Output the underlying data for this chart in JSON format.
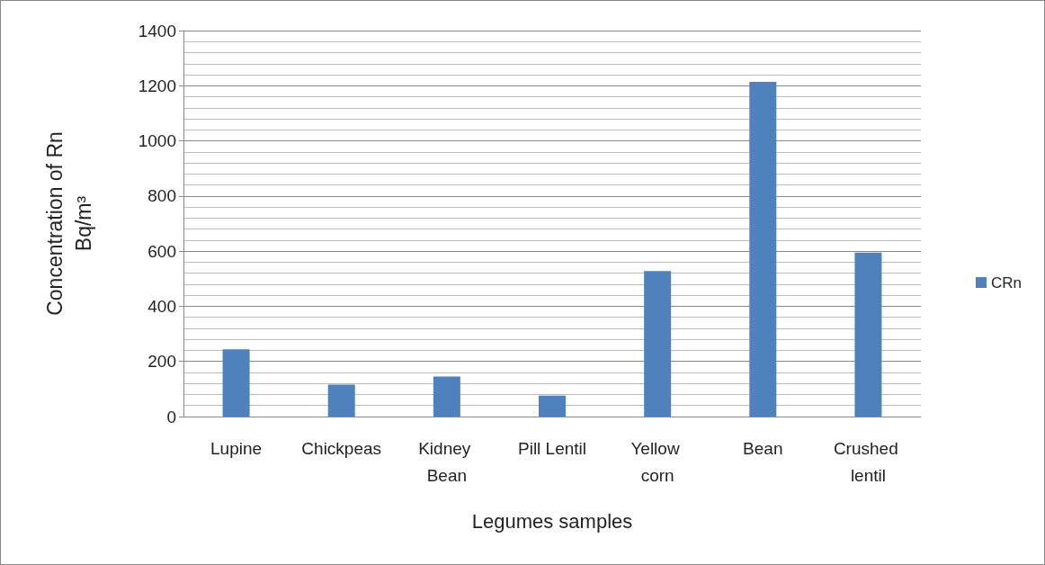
{
  "chart_data": {
    "type": "bar",
    "xlabel": "Legumes samples",
    "ylabel": "Concentration of Rn Bq/m³",
    "categories": [
      "Lupine",
      "Chickpeas",
      "Kidney Bean",
      "Pill Lentil",
      "Yellow corn",
      "Bean",
      "Crushed lentil"
    ],
    "series": [
      {
        "name": "CRn",
        "color": "#4f81bd",
        "values": [
          244,
          116,
          145,
          76,
          528,
          1214,
          595
        ]
      }
    ],
    "ylim": [
      0,
      1400
    ],
    "yticks": [
      0,
      200,
      400,
      600,
      800,
      1000,
      1200,
      1400
    ],
    "grid": true,
    "legend": "right"
  }
}
